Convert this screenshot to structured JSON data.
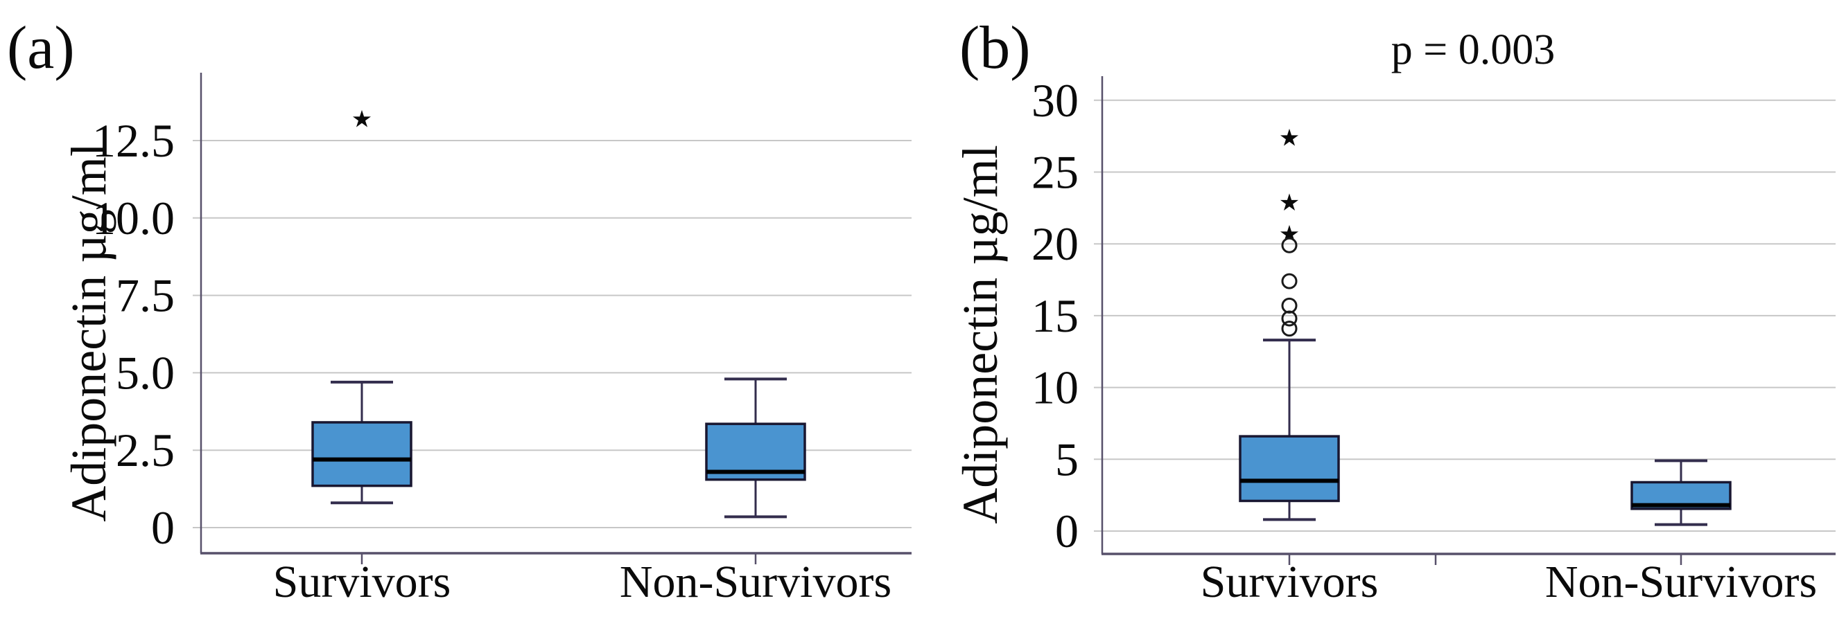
{
  "chart_data": [
    {
      "type": "box",
      "panel_label": "(a)",
      "ylabel": "Adiponectin µg/ml",
      "annotation": "",
      "grid": true,
      "legend": "none",
      "ylim": [
        0,
        14.7
      ],
      "yticks": [
        0,
        2.5,
        5.0,
        7.5,
        10.0,
        12.5
      ],
      "ytick_labels": [
        "0",
        "2.5",
        "5.0",
        "7.5",
        "10.0",
        "12.5"
      ],
      "categories": [
        "Survivors",
        "Non-Survivors"
      ],
      "series": [
        {
          "category": "Survivors",
          "whisker_low": 0.8,
          "q1": 1.35,
          "median": 2.2,
          "q3": 3.4,
          "whisker_high": 4.7,
          "outliers_extreme_star": [
            13.2
          ],
          "outliers_mild_circle": []
        },
        {
          "category": "Non-Survivors",
          "whisker_low": 0.35,
          "q1": 1.55,
          "median": 1.8,
          "q3": 3.35,
          "whisker_high": 4.8,
          "outliers_extreme_star": [],
          "outliers_mild_circle": []
        }
      ]
    },
    {
      "type": "box",
      "panel_label": "(b)",
      "ylabel": "Adiponectin µg/ml",
      "annotation": "p = 0.003",
      "grid": true,
      "legend": "none",
      "ylim": [
        0,
        31.7
      ],
      "yticks": [
        0,
        5,
        10,
        15,
        20,
        25,
        30
      ],
      "ytick_labels": [
        "0",
        "5",
        "10",
        "15",
        "20",
        "25",
        "30"
      ],
      "categories": [
        "Survivors",
        "Non-Survivors"
      ],
      "series": [
        {
          "category": "Survivors",
          "whisker_low": 0.8,
          "q1": 2.1,
          "median": 3.5,
          "q3": 6.6,
          "whisker_high": 13.3,
          "outliers_extreme_star": [
            27.4,
            22.9,
            20.7
          ],
          "outliers_mild_circle": [
            19.9,
            17.4,
            15.7,
            14.8,
            14.1
          ]
        },
        {
          "category": "Non-Survivors",
          "whisker_low": 0.45,
          "q1": 1.55,
          "median": 1.8,
          "q3": 3.4,
          "whisker_high": 4.9,
          "outliers_extreme_star": [],
          "outliers_mild_circle": []
        }
      ]
    }
  ],
  "colors": {
    "box_fill": "#4a94d0",
    "box_border": "#191731",
    "median_line": "#000000",
    "whisker": "#332d4d",
    "gridline": "#c7c7c7",
    "axis_line": "#57506a",
    "outlier": "#1a1a1a",
    "text": "#0a0a0a",
    "background": "#ffffff"
  }
}
